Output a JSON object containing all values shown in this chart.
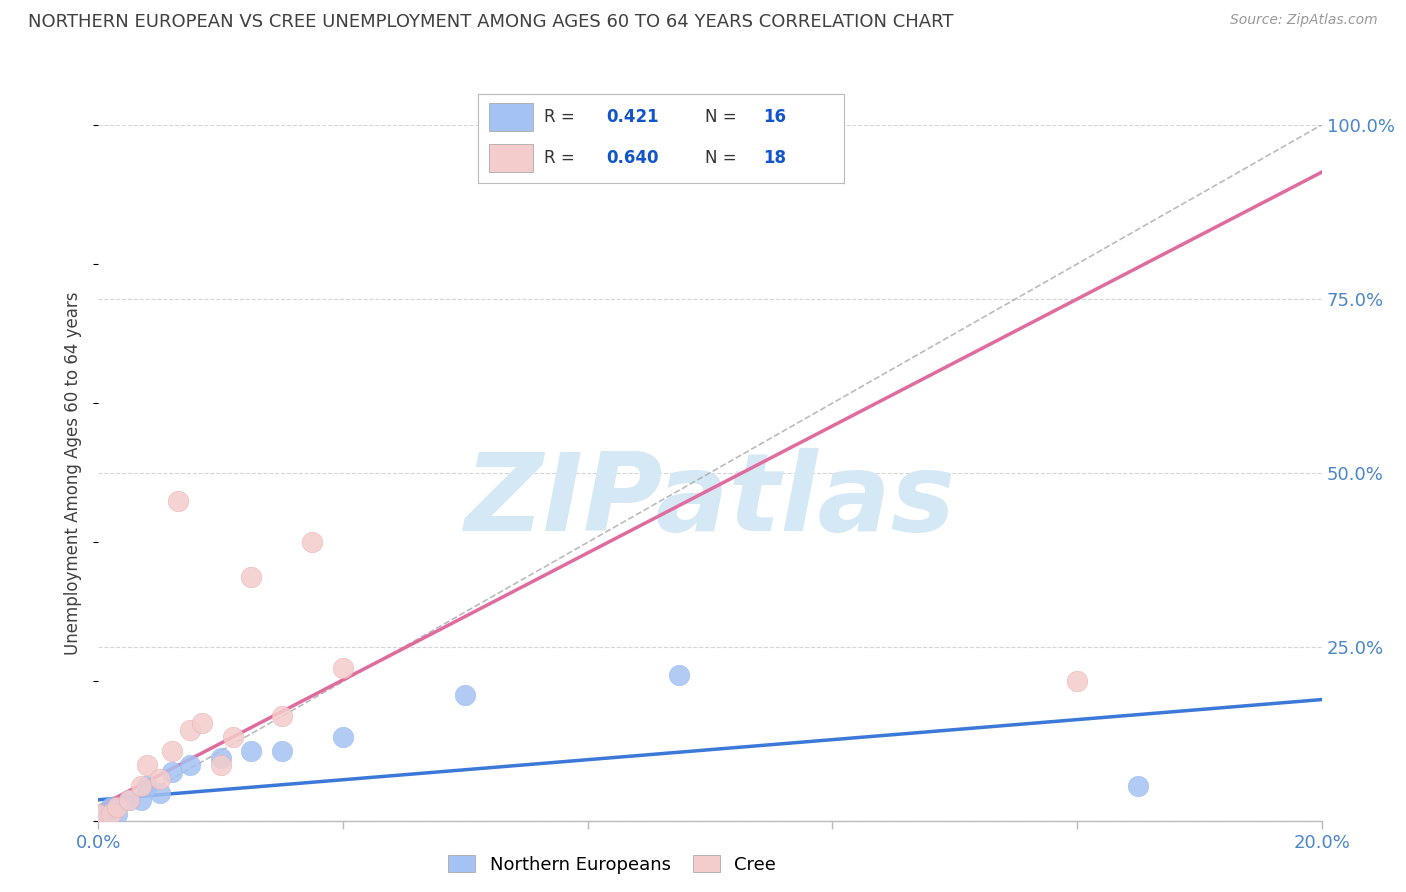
{
  "title": "NORTHERN EUROPEAN VS CREE UNEMPLOYMENT AMONG AGES 60 TO 64 YEARS CORRELATION CHART",
  "source": "Source: ZipAtlas.com",
  "ylabel": "Unemployment Among Ages 60 to 64 years",
  "xlim": [
    0.0,
    0.2
  ],
  "ylim": [
    0.0,
    1.0
  ],
  "xticks": [
    0.0,
    0.04,
    0.08,
    0.12,
    0.16,
    0.2
  ],
  "xtick_labels": [
    "0.0%",
    "",
    "",
    "",
    "",
    "20.0%"
  ],
  "yticks_right": [
    0.0,
    0.25,
    0.5,
    0.75,
    1.0
  ],
  "ytick_right_labels": [
    "",
    "25.0%",
    "50.0%",
    "75.0%",
    "100.0%"
  ],
  "ne_x": [
    0.0,
    0.002,
    0.003,
    0.005,
    0.007,
    0.008,
    0.01,
    0.012,
    0.015,
    0.02,
    0.025,
    0.03,
    0.04,
    0.06,
    0.095,
    0.17
  ],
  "ne_y": [
    0.01,
    0.02,
    0.01,
    0.03,
    0.03,
    0.05,
    0.04,
    0.07,
    0.08,
    0.09,
    0.1,
    0.1,
    0.12,
    0.18,
    0.21,
    0.05
  ],
  "cree_x": [
    0.0,
    0.002,
    0.003,
    0.005,
    0.007,
    0.008,
    0.01,
    0.012,
    0.013,
    0.015,
    0.017,
    0.02,
    0.022,
    0.025,
    0.03,
    0.035,
    0.04,
    0.16
  ],
  "cree_y": [
    0.01,
    0.01,
    0.02,
    0.03,
    0.05,
    0.08,
    0.06,
    0.1,
    0.46,
    0.13,
    0.14,
    0.08,
    0.12,
    0.35,
    0.15,
    0.4,
    0.22,
    0.2
  ],
  "blue_R": 0.421,
  "blue_N": 16,
  "pink_R": 0.64,
  "pink_N": 18,
  "blue_color": "#a4c2f4",
  "pink_color": "#f4cccc",
  "blue_line_color": "#3b78d8",
  "pink_line_color": "#e06c9f",
  "ref_line_color": "#aaaaaa",
  "legend_R_color": "#1155cc",
  "background_color": "#ffffff",
  "grid_color": "#cccccc",
  "title_color": "#404040",
  "watermark_color": "#d5e8f5",
  "watermark_text": "ZIPatlas"
}
